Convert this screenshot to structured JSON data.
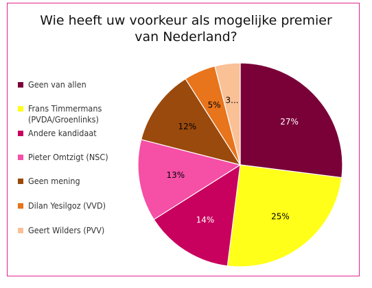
{
  "chart_data": {
    "type": "pie",
    "title_lines": [
      "Wie heeft uw voorkeur als mogelijke premier",
      "van Nederland?"
    ],
    "slices": [
      {
        "name": "Geen van allen",
        "value": 27,
        "label": "27%",
        "color": "#7a0038",
        "label_color": "#ffffff"
      },
      {
        "name": "Frans Timmermans\n(PVDA/Groenlinks)",
        "value": 25,
        "label": "25%",
        "color": "#ffff1a",
        "label_color": "#000000"
      },
      {
        "name": "Andere kandidaat",
        "value": 14,
        "label": "14%",
        "color": "#c8005e",
        "label_color": "#ffffff"
      },
      {
        "name": "Pieter Omtzigt (NSC)",
        "value": 13,
        "label": "13%",
        "color": "#f54fa6",
        "label_color": "#000000"
      },
      {
        "name": "Geen mening",
        "value": 12,
        "label": "12%",
        "color": "#9a4a0c",
        "label_color": "#000000"
      },
      {
        "name": "Dilan Yesilgoz (VVD)",
        "value": 5,
        "label": "5%",
        "color": "#e8741c",
        "label_color": "#000000"
      },
      {
        "name": "Geert Wilders (PVV)",
        "value": 4,
        "label": "3...",
        "color": "#fac096",
        "label_color": "#000000"
      }
    ],
    "legend_position": "left"
  }
}
